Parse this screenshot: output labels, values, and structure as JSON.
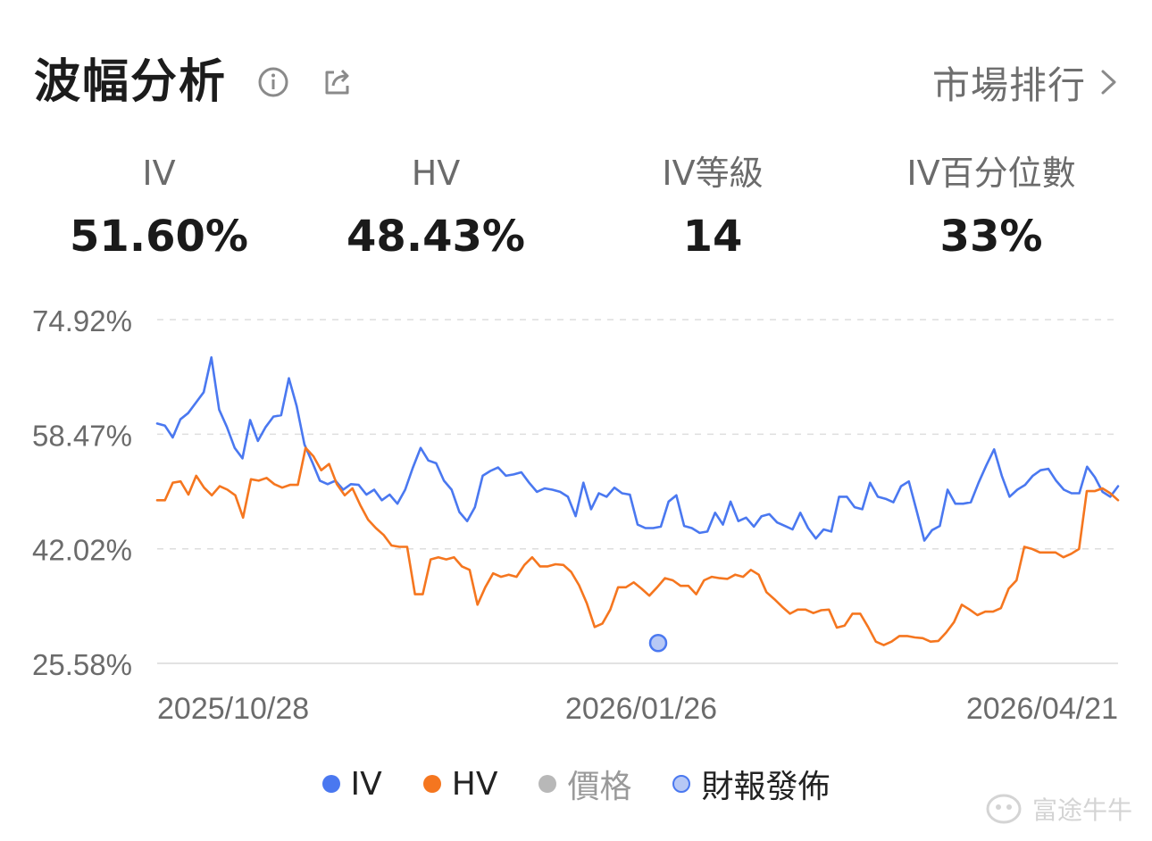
{
  "header": {
    "title": "波幅分析",
    "rank_label": "市場排行",
    "icons": [
      "info-icon",
      "share-icon",
      "chevron-right-icon"
    ]
  },
  "stats": [
    {
      "label": "IV",
      "value": "51.60%"
    },
    {
      "label": "HV",
      "value": "48.43%"
    },
    {
      "label": "IV等級",
      "value": "14"
    },
    {
      "label": "IV百分位數",
      "value": "33%"
    }
  ],
  "colors": {
    "iv": "#4a78f0",
    "hv": "#f5761f",
    "price": "#b8b8b8",
    "earnings": "#8ea6ec",
    "grid": "#dedede"
  },
  "chart_data": {
    "type": "line",
    "y_ticks": [
      "74.92%",
      "58.47%",
      "42.02%",
      "25.58%"
    ],
    "ylim": [
      25.58,
      74.92
    ],
    "x_ticks": [
      "2025/10/28",
      "2026/01/26",
      "2026/04/21"
    ],
    "grid": true,
    "legend_position": "bottom",
    "series": [
      {
        "name": "IV",
        "values": [
          60.0,
          59.7,
          58.0,
          60.6,
          61.5,
          63.0,
          64.5,
          69.5,
          62.0,
          59.5,
          56.5,
          55.0,
          60.5,
          57.5,
          59.5,
          61.0,
          61.2,
          66.5,
          62.5,
          57.0,
          54.5,
          51.8,
          51.3,
          51.8,
          50.5,
          51.3,
          51.2,
          49.8,
          50.5,
          49.0,
          49.8,
          48.5,
          50.5,
          53.7,
          56.5,
          54.7,
          54.3,
          51.8,
          50.5,
          47.3,
          46.0,
          48.0,
          52.5,
          53.2,
          53.7,
          52.5,
          52.7,
          53.0,
          51.5,
          50.2,
          50.7,
          50.5,
          50.2,
          49.5,
          46.7,
          51.5,
          47.7,
          50.0,
          49.5,
          50.8,
          50.0,
          49.8,
          45.5,
          45.0,
          45.0,
          45.2,
          48.8,
          49.7,
          45.3,
          45.0,
          44.3,
          44.5,
          47.2,
          45.5,
          48.8,
          46.0,
          46.5,
          45.2,
          46.7,
          47.0,
          45.8,
          45.3,
          44.8,
          47.2,
          45.0,
          43.5,
          44.8,
          44.5,
          49.5,
          49.5,
          48.0,
          47.7,
          51.5,
          49.5,
          49.2,
          48.7,
          51.0,
          51.7,
          47.5,
          43.2,
          44.7,
          45.3,
          50.5,
          48.5,
          48.5,
          48.7,
          51.5,
          54.0,
          56.3,
          52.5,
          49.5,
          50.5,
          51.2,
          52.5,
          53.3,
          53.5,
          51.8,
          50.5,
          50.0,
          50.0,
          53.8,
          52.3,
          50.2,
          49.5,
          51.0
        ]
      },
      {
        "name": "HV",
        "values": [
          49.0,
          49.0,
          51.5,
          51.7,
          49.8,
          52.5,
          50.8,
          49.7,
          51.0,
          50.5,
          49.7,
          46.5,
          52.0,
          51.8,
          52.2,
          51.3,
          50.8,
          51.2,
          51.2,
          56.5,
          55.3,
          53.3,
          54.2,
          51.3,
          49.7,
          50.7,
          48.3,
          46.2,
          45.0,
          44.0,
          42.5,
          42.3,
          42.3,
          35.5,
          35.5,
          40.5,
          40.8,
          40.5,
          40.8,
          39.5,
          39.0,
          34.0,
          36.5,
          38.5,
          38.0,
          38.3,
          38.0,
          39.7,
          40.8,
          39.5,
          39.5,
          39.8,
          39.7,
          38.7,
          36.8,
          34.2,
          30.8,
          31.3,
          33.3,
          36.5,
          36.5,
          37.2,
          36.3,
          35.3,
          36.5,
          37.8,
          37.5,
          36.7,
          36.7,
          35.5,
          37.5,
          38.0,
          37.8,
          37.7,
          38.3,
          38.0,
          39.0,
          38.3,
          35.8,
          34.8,
          33.7,
          32.7,
          33.3,
          33.3,
          32.8,
          33.2,
          33.3,
          30.7,
          31.0,
          32.7,
          32.7,
          30.8,
          28.7,
          28.2,
          28.7,
          29.5,
          29.5,
          29.3,
          29.2,
          28.7,
          28.8,
          30.0,
          31.5,
          34.0,
          33.3,
          32.5,
          33.0,
          33.0,
          33.5,
          36.3,
          37.5,
          42.3,
          42.0,
          41.5,
          41.5,
          41.5,
          40.8,
          41.3,
          42.0,
          50.3,
          50.3,
          50.7,
          50.0,
          49.0
        ]
      }
    ],
    "earnings_markers": [
      {
        "position": "2026/01/26",
        "value": 28.5
      }
    ]
  },
  "legend": [
    {
      "key": "iv",
      "label": "IV"
    },
    {
      "key": "hv",
      "label": "HV"
    },
    {
      "key": "price",
      "label": "價格"
    },
    {
      "key": "earnings",
      "label": "財報發佈"
    }
  ],
  "watermark": "富途牛牛"
}
